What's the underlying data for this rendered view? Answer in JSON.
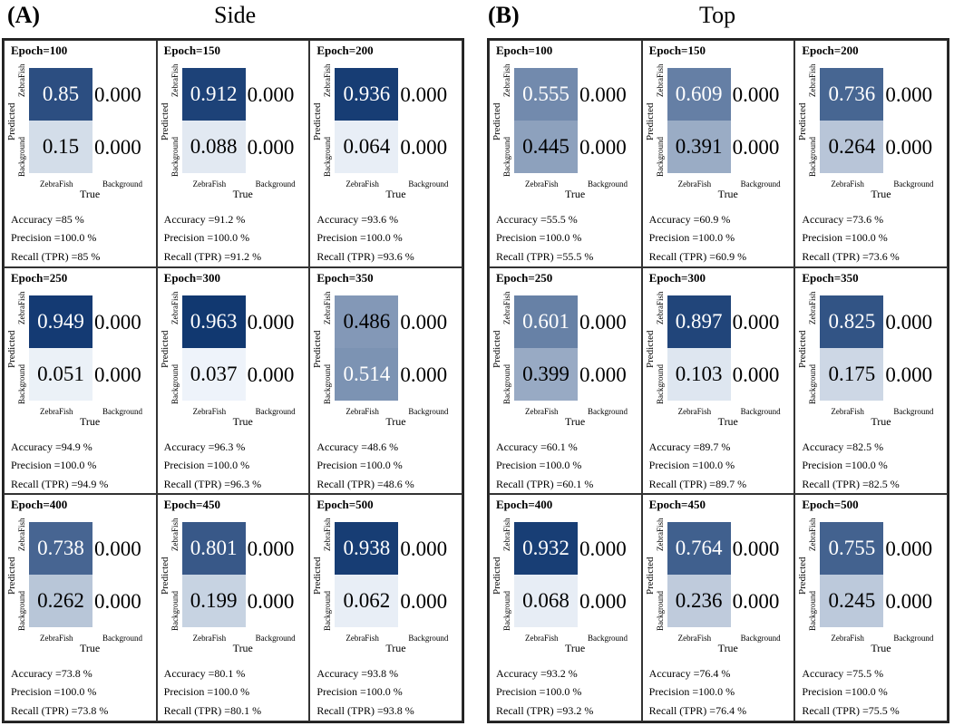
{
  "chart_data": [
    {
      "type": "heatmap",
      "panel_label": "(A)",
      "title": "Side",
      "row_label": "Predicted",
      "row_categories": [
        "ZebraFish",
        "Background"
      ],
      "col_label": "True",
      "col_categories": [
        "ZebraFish",
        "Background"
      ],
      "colormap": [
        "#f7fbff",
        "#08306b"
      ],
      "matrices": [
        {
          "epoch": "Epoch=100",
          "tp": "0.85",
          "fn": "0.15",
          "fp": "0.000",
          "tn": "0.000",
          "tp_value": 0.85,
          "fn_value": 0.15,
          "accuracy": "Accuracy =85 %",
          "precision": "Precision =100.0 %",
          "recall": "Recall (TPR) =85 %"
        },
        {
          "epoch": "Epoch=150",
          "tp": "0.912",
          "fn": "0.088",
          "fp": "0.000",
          "tn": "0.000",
          "tp_value": 0.912,
          "fn_value": 0.088,
          "accuracy": "Accuracy =91.2 %",
          "precision": "Precision =100.0 %",
          "recall": "Recall (TPR) =91.2 %"
        },
        {
          "epoch": "Epoch=200",
          "tp": "0.936",
          "fn": "0.064",
          "fp": "0.000",
          "tn": "0.000",
          "tp_value": 0.936,
          "fn_value": 0.064,
          "accuracy": "Accuracy =93.6 %",
          "precision": "Precision =100.0 %",
          "recall": "Recall (TPR) =93.6 %"
        },
        {
          "epoch": "Epoch=250",
          "tp": "0.949",
          "fn": "0.051",
          "fp": "0.000",
          "tn": "0.000",
          "tp_value": 0.949,
          "fn_value": 0.051,
          "accuracy": "Accuracy =94.9 %",
          "precision": "Precision =100.0 %",
          "recall": "Recall (TPR) =94.9 %"
        },
        {
          "epoch": "Epoch=300",
          "tp": "0.963",
          "fn": "0.037",
          "fp": "0.000",
          "tn": "0.000",
          "tp_value": 0.963,
          "fn_value": 0.037,
          "accuracy": "Accuracy =96.3 %",
          "precision": "Precision =100.0 %",
          "recall": "Recall (TPR) =96.3 %"
        },
        {
          "epoch": "Epoch=350",
          "tp": "0.486",
          "fn": "0.514",
          "fp": "0.000",
          "tn": "0.000",
          "tp_value": 0.486,
          "fn_value": 0.514,
          "accuracy": "Accuracy =48.6 %",
          "precision": "Precision =100.0 %",
          "recall": "Recall (TPR) =48.6 %"
        },
        {
          "epoch": "Epoch=400",
          "tp": "0.738",
          "fn": "0.262",
          "fp": "0.000",
          "tn": "0.000",
          "tp_value": 0.738,
          "fn_value": 0.262,
          "accuracy": "Accuracy =73.8 %",
          "precision": "Precision =100.0 %",
          "recall": "Recall (TPR) =73.8 %"
        },
        {
          "epoch": "Epoch=450",
          "tp": "0.801",
          "fn": "0.199",
          "fp": "0.000",
          "tn": "0.000",
          "tp_value": 0.801,
          "fn_value": 0.199,
          "accuracy": "Accuracy =80.1 %",
          "precision": "Precision =100.0 %",
          "recall": "Recall (TPR) =80.1 %"
        },
        {
          "epoch": "Epoch=500",
          "tp": "0.938",
          "fn": "0.062",
          "fp": "0.000",
          "tn": "0.000",
          "tp_value": 0.938,
          "fn_value": 0.062,
          "accuracy": "Accuracy =93.8 %",
          "precision": "Precision =100.0 %",
          "recall": "Recall (TPR) =93.8 %"
        }
      ]
    },
    {
      "type": "heatmap",
      "panel_label": "(B)",
      "title": "Top",
      "row_label": "Predicted",
      "row_categories": [
        "ZebraFish",
        "Background"
      ],
      "col_label": "True",
      "col_categories": [
        "ZebraFish",
        "Background"
      ],
      "colormap": [
        "#f7fbff",
        "#08306b"
      ],
      "matrices": [
        {
          "epoch": "Epoch=100",
          "tp": "0.555",
          "fn": "0.445",
          "fp": "0.000",
          "tn": "0.000",
          "tp_value": 0.555,
          "fn_value": 0.445,
          "accuracy": "Accuracy =55.5 %",
          "precision": "Precision =100.0 %",
          "recall": "Recall (TPR) =55.5 %"
        },
        {
          "epoch": "Epoch=150",
          "tp": "0.609",
          "fn": "0.391",
          "fp": "0.000",
          "tn": "0.000",
          "tp_value": 0.609,
          "fn_value": 0.391,
          "accuracy": "Accuracy =60.9 %",
          "precision": "Precision =100.0 %",
          "recall": "Recall (TPR) =60.9 %"
        },
        {
          "epoch": "Epoch=200",
          "tp": "0.736",
          "fn": "0.264",
          "fp": "0.000",
          "tn": "0.000",
          "tp_value": 0.736,
          "fn_value": 0.264,
          "accuracy": "Accuracy =73.6 %",
          "precision": "Precision =100.0 %",
          "recall": "Recall (TPR) =73.6 %"
        },
        {
          "epoch": "Epoch=250",
          "tp": "0.601",
          "fn": "0.399",
          "fp": "0.000",
          "tn": "0.000",
          "tp_value": 0.601,
          "fn_value": 0.399,
          "accuracy": "Accuracy =60.1 %",
          "precision": "Precision =100.0 %",
          "recall": "Recall (TPR) =60.1 %"
        },
        {
          "epoch": "Epoch=300",
          "tp": "0.897",
          "fn": "0.103",
          "fp": "0.000",
          "tn": "0.000",
          "tp_value": 0.897,
          "fn_value": 0.103,
          "accuracy": "Accuracy =89.7 %",
          "precision": "Precision =100.0 %",
          "recall": "Recall (TPR) =89.7 %"
        },
        {
          "epoch": "Epoch=350",
          "tp": "0.825",
          "fn": "0.175",
          "fp": "0.000",
          "tn": "0.000",
          "tp_value": 0.825,
          "fn_value": 0.175,
          "accuracy": "Accuracy =82.5 %",
          "precision": "Precision =100.0 %",
          "recall": "Recall (TPR) =82.5 %"
        },
        {
          "epoch": "Epoch=400",
          "tp": "0.932",
          "fn": "0.068",
          "fp": "0.000",
          "tn": "0.000",
          "tp_value": 0.932,
          "fn_value": 0.068,
          "accuracy": "Accuracy =93.2 %",
          "precision": "Precision =100.0 %",
          "recall": "Recall (TPR) =93.2 %"
        },
        {
          "epoch": "Epoch=450",
          "tp": "0.764",
          "fn": "0.236",
          "fp": "0.000",
          "tn": "0.000",
          "tp_value": 0.764,
          "fn_value": 0.236,
          "accuracy": "Accuracy =76.4 %",
          "precision": "Precision =100.0 %",
          "recall": "Recall (TPR) =76.4 %"
        },
        {
          "epoch": "Epoch=500",
          "tp": "0.755",
          "fn": "0.245",
          "fp": "0.000",
          "tn": "0.000",
          "tp_value": 0.755,
          "fn_value": 0.245,
          "accuracy": "Accuracy =75.5 %",
          "precision": "Precision =100.0 %",
          "recall": "Recall (TPR) =75.5 %"
        }
      ]
    }
  ]
}
